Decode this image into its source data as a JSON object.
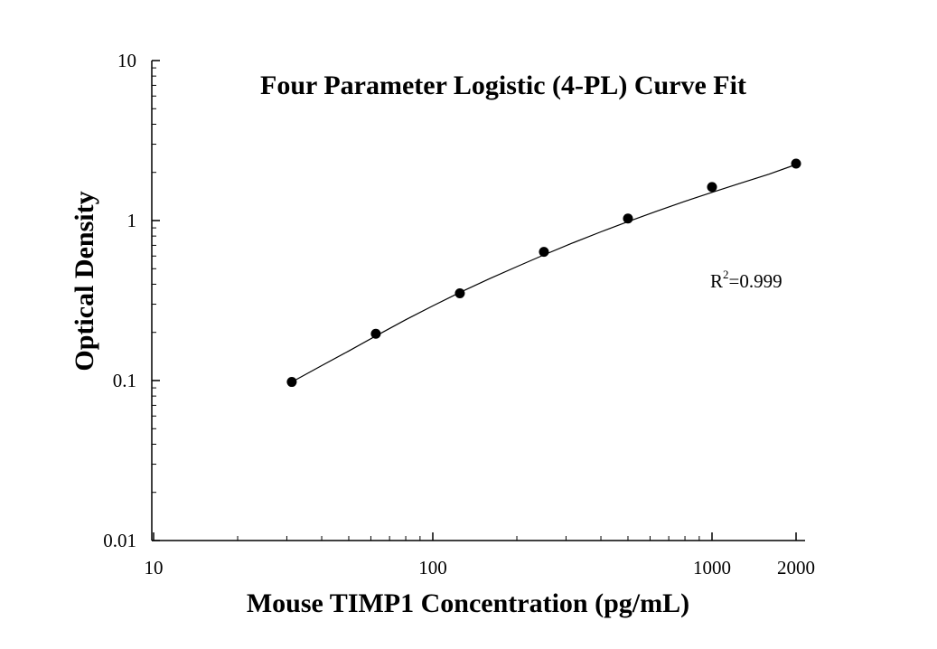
{
  "chart_data": {
    "type": "scatter",
    "title": "Four Parameter Logistic (4-PL) Curve Fit",
    "xlabel": "Mouse TIMP1 Concentration (pg/mL)",
    "ylabel": "Optical Density",
    "xscale": "log",
    "yscale": "log",
    "xlim": [
      10,
      2000
    ],
    "ylim": [
      0.01,
      10
    ],
    "xticks": [
      {
        "value": 10,
        "label": "10"
      },
      {
        "value": 100,
        "label": "100"
      },
      {
        "value": 1000,
        "label": "1000"
      },
      {
        "value": 2000,
        "label": "2000"
      }
    ],
    "yticks": [
      {
        "value": 0.01,
        "label": "0.01"
      },
      {
        "value": 0.1,
        "label": "0.1"
      },
      {
        "value": 1,
        "label": "1"
      },
      {
        "value": 10,
        "label": "10"
      }
    ],
    "series": [
      {
        "x": [
          31.25,
          62.5,
          125,
          250,
          500,
          1000,
          2000
        ],
        "y": [
          0.098,
          0.196,
          0.351,
          0.637,
          1.03,
          1.62,
          2.27
        ],
        "marker": "filled-circle",
        "color": "#000000"
      }
    ],
    "fit_curve": {
      "model": "4PL",
      "x": [
        31.25,
        40,
        50,
        62.5,
        80,
        100,
        125,
        160,
        200,
        250,
        315,
        400,
        500,
        630,
        800,
        1000,
        1250,
        1600,
        2000
      ],
      "y": [
        0.098,
        0.124,
        0.153,
        0.19,
        0.24,
        0.293,
        0.355,
        0.434,
        0.515,
        0.61,
        0.721,
        0.85,
        0.985,
        1.14,
        1.32,
        1.5,
        1.7,
        1.95,
        2.24
      ],
      "color": "#000000"
    },
    "annotation": {
      "base": "R",
      "sup": "2",
      "rest": "=0.999"
    },
    "grid": false,
    "legend": "none"
  }
}
